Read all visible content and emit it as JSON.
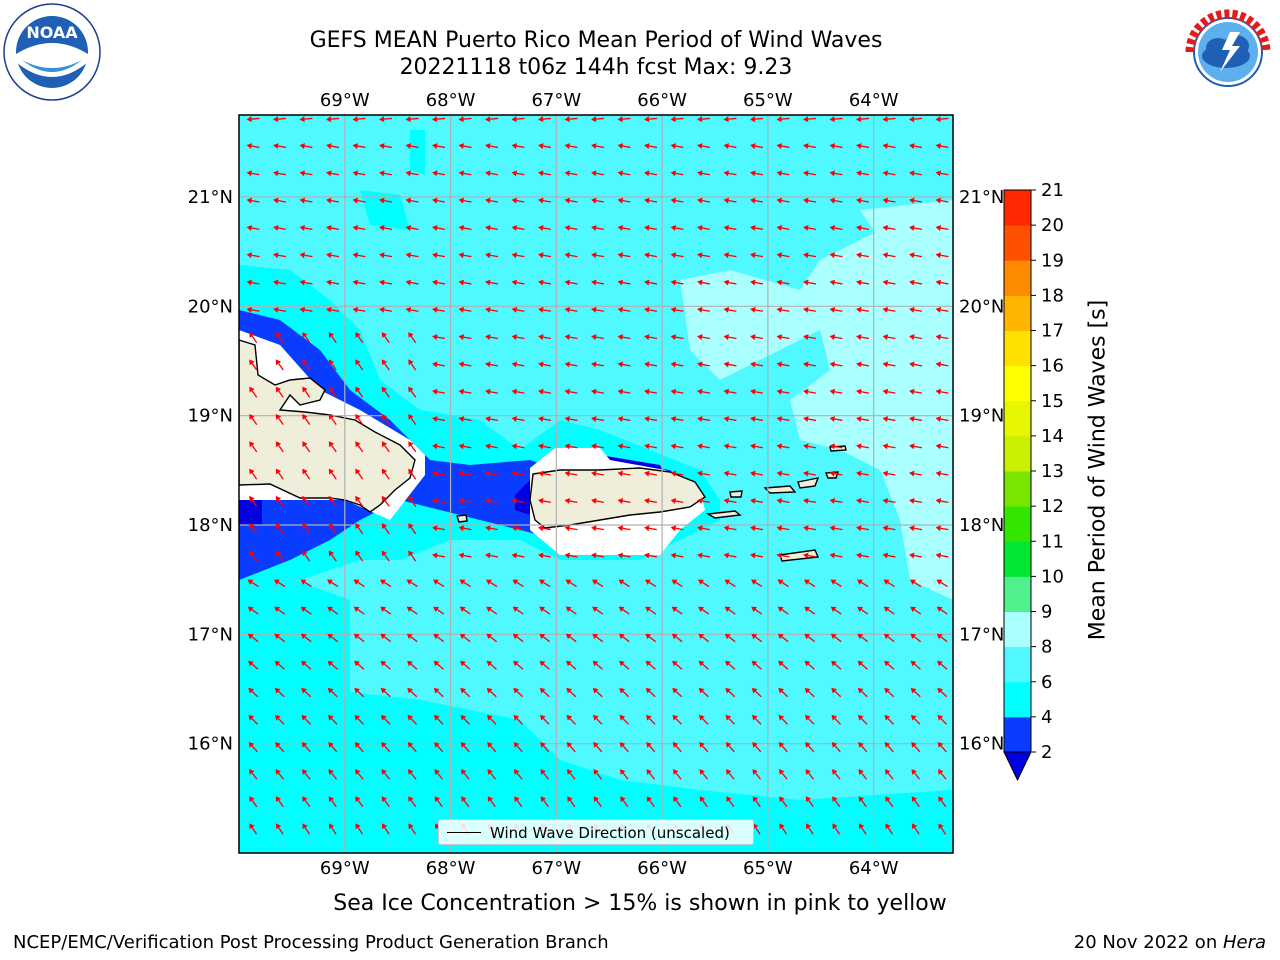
{
  "title": {
    "line1": "GEFS MEAN Puerto Rico Mean Period of Wind Waves",
    "line2": "20221118 t06z 144h fcst   Max: 9.23"
  },
  "logos": {
    "left": {
      "name": "noaa-logo",
      "text": "NOAA",
      "ring_text": "NATIONAL OCEANIC AND ATMOSPHERIC ADMINISTRATION · U.S. DEPARTMENT OF COMMERCE"
    },
    "right": {
      "name": "nws-logo",
      "ring_text": "NATIONAL WEATHER SERVICE"
    }
  },
  "map": {
    "projection": "lat-lon",
    "lon_range": [
      -70.0,
      -63.25
    ],
    "lat_range": [
      15.0,
      21.75
    ],
    "lon_ticks": [
      {
        "value": -69,
        "label": "69°W"
      },
      {
        "value": -68,
        "label": "68°W"
      },
      {
        "value": -67,
        "label": "67°W"
      },
      {
        "value": -66,
        "label": "66°W"
      },
      {
        "value": -65,
        "label": "65°W"
      },
      {
        "value": -64,
        "label": "64°W"
      }
    ],
    "lat_ticks": [
      {
        "value": 21,
        "label": "21°N"
      },
      {
        "value": 20,
        "label": "20°N"
      },
      {
        "value": 19,
        "label": "19°N"
      },
      {
        "value": 18,
        "label": "18°N"
      },
      {
        "value": 17,
        "label": "17°N"
      },
      {
        "value": 16,
        "label": "16°N"
      }
    ],
    "grid": true,
    "land_color": "#efeedb",
    "arrow_color": "#ff0000",
    "legend_label": "Wind Wave Direction (unscaled)",
    "legend_position": "bottom-center"
  },
  "colorbar": {
    "label": "Mean Period of Wind Waves [s]",
    "ticks": [
      "2",
      "4",
      "6",
      "8",
      "9",
      "10",
      "11",
      "12",
      "13",
      "14",
      "15",
      "16",
      "17",
      "18",
      "19",
      "20",
      "21"
    ],
    "colors": [
      "#0a3cff",
      "#00ffff",
      "#50f8ff",
      "#aaffff",
      "#50f08c",
      "#00e632",
      "#32e600",
      "#78e600",
      "#c8f000",
      "#e6f500",
      "#ffff00",
      "#ffe100",
      "#ffb400",
      "#ff8c00",
      "#ff5000",
      "#ff2800",
      "#ff0000"
    ],
    "under_color": "#0000e0",
    "extend": "min"
  },
  "footer": {
    "note": "Sea Ice Concentration > 15% is shown in pink to yellow",
    "credit": "NCEP/EMC/Verification Post Processing Product Generation Branch",
    "date_prefix": "20 Nov 2022 on ",
    "machine": "Hera"
  }
}
